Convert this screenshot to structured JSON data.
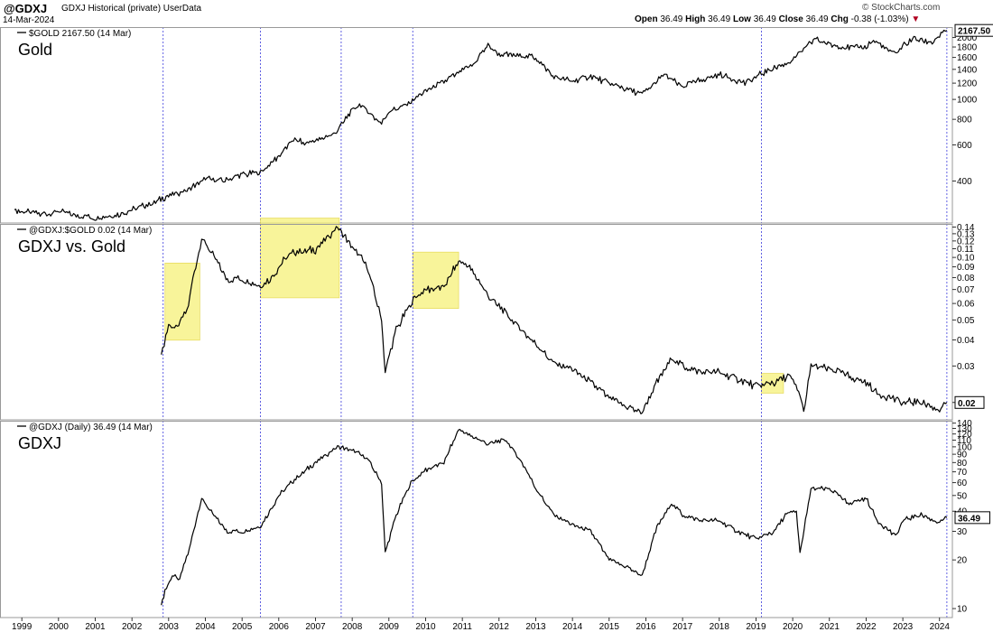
{
  "header": {
    "symbol": "@GDXJ",
    "description": "GDXJ Historical (private)  UserData",
    "date": "14-Mar-2024",
    "watermark": "© StockCharts.com",
    "open_label": "Open",
    "open_value": "36.49",
    "high_label": "High",
    "high_value": "36.49",
    "low_label": "Low",
    "low_value": "36.49",
    "close_label": "Close",
    "close_value": "36.49",
    "chg_label": "Chg",
    "chg_value": "-0.38 (-1.03%)",
    "chg_arrow": "▼",
    "down_color": "#b00020"
  },
  "chart_data": [
    {
      "type": "line",
      "legend": "$GOLD 2167.50 (14 Mar)",
      "annotation": "Gold",
      "last_label": "2167.50",
      "y_scale": "log",
      "ylim": [
        250,
        2250
      ],
      "y_ticks": [
        400,
        600,
        800,
        1000,
        1200,
        1400,
        1600,
        1800,
        2000
      ],
      "x": [
        1998.8,
        1999.5,
        2000.0,
        2000.3,
        2001.0,
        2001.5,
        2002.0,
        2002.5,
        2003.0,
        2003.5,
        2004.0,
        2004.5,
        2005.0,
        2005.5,
        2006.0,
        2006.4,
        2006.7,
        2007.0,
        2007.5,
        2008.0,
        2008.2,
        2008.8,
        2009.0,
        2009.5,
        2010.0,
        2010.5,
        2011.0,
        2011.3,
        2011.7,
        2012.0,
        2012.5,
        2013.0,
        2013.5,
        2014.0,
        2014.5,
        2015.0,
        2015.9,
        2016.5,
        2017.0,
        2017.5,
        2018.0,
        2018.7,
        2019.0,
        2019.5,
        2020.0,
        2020.6,
        2021.0,
        2021.5,
        2022.0,
        2022.2,
        2022.8,
        2023.0,
        2023.3,
        2023.8,
        2024.0,
        2024.2
      ],
      "values": [
        290,
        275,
        285,
        275,
        265,
        270,
        290,
        310,
        340,
        360,
        410,
        400,
        430,
        440,
        530,
        640,
        610,
        630,
        680,
        880,
        950,
        760,
        870,
        950,
        1100,
        1220,
        1380,
        1480,
        1850,
        1650,
        1650,
        1600,
        1280,
        1230,
        1300,
        1200,
        1060,
        1320,
        1150,
        1250,
        1320,
        1200,
        1290,
        1420,
        1550,
        1970,
        1850,
        1780,
        1800,
        1950,
        1650,
        1830,
        1980,
        1900,
        2040,
        2167.5
      ]
    },
    {
      "type": "line",
      "legend": "@GDXJ:$GOLD 0.02 (14 Mar)",
      "annotation": "GDXJ vs. Gold",
      "last_label": "0.02",
      "y_scale": "log",
      "ylim": [
        0.0165,
        0.145
      ],
      "y_ticks": [
        0.02,
        0.03,
        0.04,
        0.05,
        0.06,
        0.07,
        0.08,
        0.09,
        0.1,
        0.11,
        0.12,
        0.13,
        0.14
      ],
      "highlight_color": "#f5f078",
      "highlights": [
        [
          2002.9,
          2003.85
        ],
        [
          2005.5,
          2007.65
        ],
        [
          2009.65,
          2010.9
        ],
        [
          2019.15,
          2019.75
        ]
      ],
      "x": [
        2002.8,
        2003.0,
        2003.2,
        2003.5,
        2003.7,
        2003.9,
        2004.2,
        2004.6,
        2005.0,
        2005.5,
        2005.8,
        2006.2,
        2006.5,
        2007.0,
        2007.6,
        2008.0,
        2008.4,
        2008.8,
        2008.9,
        2009.2,
        2009.7,
        2010.0,
        2010.5,
        2010.9,
        2011.2,
        2011.7,
        2012.0,
        2012.5,
        2013.0,
        2013.5,
        2014.0,
        2014.5,
        2015.0,
        2015.5,
        2015.9,
        2016.3,
        2016.7,
        2017.0,
        2017.5,
        2018.0,
        2018.5,
        2019.0,
        2019.5,
        2019.9,
        2020.2,
        2020.3,
        2020.5,
        2021.0,
        2021.5,
        2022.0,
        2022.3,
        2022.7,
        2023.0,
        2023.5,
        2024.0,
        2024.2
      ],
      "values": [
        0.034,
        0.048,
        0.045,
        0.055,
        0.085,
        0.125,
        0.102,
        0.078,
        0.079,
        0.072,
        0.08,
        0.1,
        0.107,
        0.109,
        0.14,
        0.112,
        0.091,
        0.05,
        0.028,
        0.045,
        0.064,
        0.07,
        0.072,
        0.096,
        0.09,
        0.066,
        0.058,
        0.047,
        0.038,
        0.031,
        0.029,
        0.025,
        0.021,
        0.019,
        0.018,
        0.025,
        0.033,
        0.03,
        0.028,
        0.028,
        0.026,
        0.024,
        0.025,
        0.027,
        0.022,
        0.018,
        0.03,
        0.029,
        0.027,
        0.025,
        0.022,
        0.021,
        0.02,
        0.02,
        0.0185,
        0.02
      ]
    },
    {
      "type": "line",
      "legend": "@GDXJ (Daily) 36.49 (14 Mar)",
      "annotation": "GDXJ",
      "last_label": "36.49",
      "y_scale": "log",
      "ylim": [
        8.8,
        145
      ],
      "y_ticks": [
        10,
        20,
        30,
        40,
        50,
        60,
        70,
        80,
        90,
        100,
        110,
        120,
        130,
        140
      ],
      "x_ticks": [
        1999,
        2000,
        2001,
        2002,
        2003,
        2004,
        2005,
        2006,
        2007,
        2008,
        2009,
        2010,
        2011,
        2012,
        2013,
        2014,
        2015,
        2016,
        2017,
        2018,
        2019,
        2020,
        2021,
        2022,
        2023,
        2024
      ],
      "x": [
        2002.8,
        2002.9,
        2003.1,
        2003.3,
        2003.6,
        2003.8,
        2003.9,
        2004.2,
        2004.6,
        2005.0,
        2005.5,
        2006.0,
        2006.5,
        2007.0,
        2007.6,
        2008.0,
        2008.4,
        2008.8,
        2008.9,
        2009.2,
        2009.6,
        2010.0,
        2010.5,
        2010.9,
        2011.3,
        2011.7,
        2012.2,
        2012.7,
        2013.0,
        2013.5,
        2014.0,
        2014.5,
        2015.0,
        2015.5,
        2015.9,
        2016.3,
        2016.7,
        2017.0,
        2017.5,
        2018.0,
        2018.5,
        2019.0,
        2019.5,
        2019.8,
        2020.1,
        2020.2,
        2020.5,
        2021.0,
        2021.5,
        2022.0,
        2022.3,
        2022.8,
        2023.0,
        2023.5,
        2024.0,
        2024.2
      ],
      "values": [
        10.5,
        13,
        16,
        15,
        25,
        40,
        48,
        38,
        30,
        30,
        32,
        50,
        65,
        80,
        100,
        95,
        85,
        60,
        22,
        38,
        60,
        72,
        80,
        128,
        115,
        105,
        110,
        75,
        55,
        38,
        33,
        30,
        20,
        18,
        16,
        32,
        45,
        38,
        35,
        35,
        30,
        27,
        30,
        38,
        40,
        22,
        55,
        55,
        45,
        48,
        35,
        28,
        35,
        38,
        34,
        36.49
      ]
    }
  ]
}
